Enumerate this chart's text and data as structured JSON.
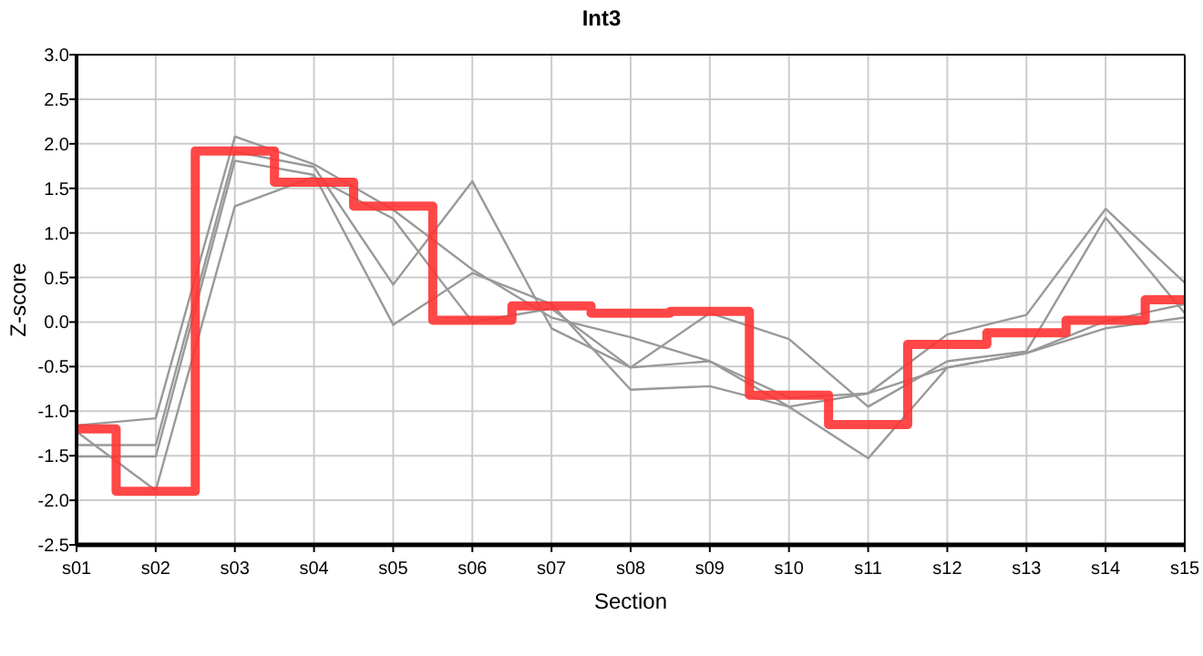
{
  "chart_data": {
    "type": "line",
    "title": "Int3",
    "xlabel": "Section",
    "ylabel": "Z-score",
    "categories": [
      "s01",
      "s02",
      "s03",
      "s04",
      "s05",
      "s06",
      "s07",
      "s08",
      "s09",
      "s10",
      "s11",
      "s12",
      "s13",
      "s14",
      "s15"
    ],
    "series": [
      {
        "color": "#999999",
        "values": [
          -1.16,
          -1.08,
          2.08,
          1.77,
          1.26,
          0.59,
          0.05,
          -0.17,
          -0.44,
          -0.85,
          -0.8,
          -0.14,
          0.08,
          1.27,
          0.44
        ]
      },
      {
        "color": "#999999",
        "values": [
          -1.38,
          -1.38,
          1.91,
          1.74,
          0.42,
          1.58,
          -0.07,
          -0.51,
          0.1,
          -0.19,
          -0.95,
          -0.44,
          -0.33,
          1.17,
          0.1
        ]
      },
      {
        "color": "#999999",
        "values": [
          -1.51,
          -1.51,
          1.81,
          1.65,
          -0.03,
          0.55,
          0.2,
          -0.76,
          -0.72,
          -0.95,
          -1.53,
          -0.51,
          -0.35,
          0.01,
          0.2
        ]
      },
      {
        "color": "#999999",
        "values": [
          -1.23,
          -1.89,
          1.3,
          1.63,
          1.16,
          0.0,
          0.15,
          -0.51,
          -0.44,
          -0.95,
          -0.8,
          -0.51,
          -0.35,
          -0.07,
          0.05
        ]
      },
      {
        "type": "step",
        "color": "#ff3333",
        "values": [
          -1.2,
          -1.9,
          1.92,
          1.57,
          1.3,
          0.02,
          0.18,
          0.1,
          0.12,
          -0.82,
          -1.15,
          -0.25,
          -0.12,
          0.02,
          0.25
        ]
      }
    ],
    "ylim": [
      -2.5,
      3.0
    ],
    "yticks": [
      {
        "value": -2.5,
        "label": "-2.5"
      },
      {
        "value": -2,
        "label": "-2.0"
      },
      {
        "value": -1.5,
        "label": "-1.5"
      },
      {
        "value": -1,
        "label": "-1.0"
      },
      {
        "value": -0.5,
        "label": "-0.5"
      },
      {
        "value": 0,
        "label": "0.0"
      },
      {
        "value": 0.5,
        "label": "0.5"
      },
      {
        "value": 1,
        "label": "1.0"
      },
      {
        "value": 1.5,
        "label": "1.5"
      },
      {
        "value": 2,
        "label": "2.0"
      },
      {
        "value": 2.5,
        "label": "2.5"
      },
      {
        "value": 3,
        "label": "3.0"
      }
    ],
    "grid": true
  }
}
